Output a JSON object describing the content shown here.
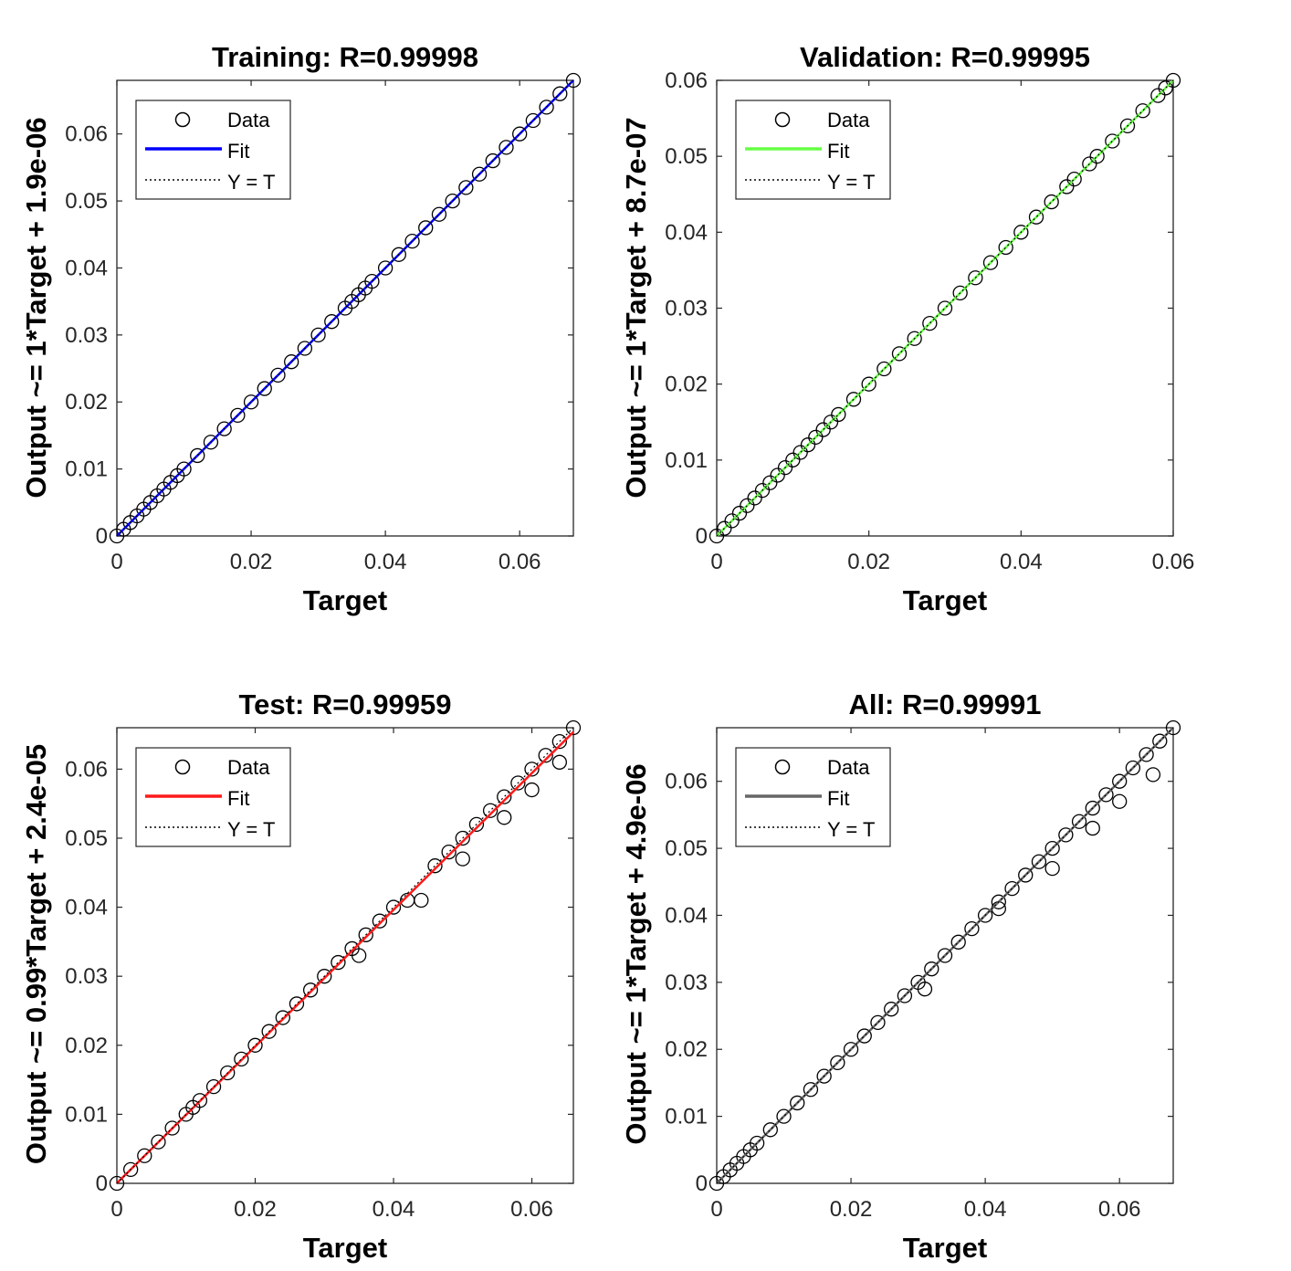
{
  "chart_data": [
    {
      "type": "scatter",
      "title": "Training: R=0.99998",
      "xlabel": "Target",
      "ylabel": "Output ~= 1*Target + 1.9e-06",
      "xlim": [
        0,
        0.068
      ],
      "ylim": [
        0,
        0.068
      ],
      "xticks": [
        "0",
        "0.02",
        "0.04",
        "0.06"
      ],
      "yticks": [
        "0",
        "0.01",
        "0.02",
        "0.03",
        "0.04",
        "0.05",
        "0.06"
      ],
      "xtick_values": [
        0,
        0.02,
        0.04,
        0.06
      ],
      "ytick_values": [
        0,
        0.01,
        0.02,
        0.03,
        0.04,
        0.05,
        0.06
      ],
      "fit": {
        "slope": 1,
        "intercept": 1.9e-06,
        "color": "#0000ff"
      },
      "legend": {
        "position": "top-left",
        "entries": [
          "Data",
          "Fit",
          "Y = T"
        ]
      },
      "grid": false,
      "data": [
        [
          0,
          0
        ],
        [
          0.001,
          0.001
        ],
        [
          0.002,
          0.002
        ],
        [
          0.003,
          0.003
        ],
        [
          0.004,
          0.004
        ],
        [
          0.005,
          0.005
        ],
        [
          0.006,
          0.006
        ],
        [
          0.007,
          0.007
        ],
        [
          0.008,
          0.008
        ],
        [
          0.009,
          0.009
        ],
        [
          0.01,
          0.01
        ],
        [
          0.012,
          0.012
        ],
        [
          0.014,
          0.014
        ],
        [
          0.016,
          0.016
        ],
        [
          0.018,
          0.018
        ],
        [
          0.02,
          0.02
        ],
        [
          0.022,
          0.022
        ],
        [
          0.024,
          0.024
        ],
        [
          0.026,
          0.026
        ],
        [
          0.028,
          0.028
        ],
        [
          0.03,
          0.03
        ],
        [
          0.032,
          0.032
        ],
        [
          0.034,
          0.034
        ],
        [
          0.035,
          0.035
        ],
        [
          0.036,
          0.036
        ],
        [
          0.037,
          0.037
        ],
        [
          0.038,
          0.038
        ],
        [
          0.04,
          0.04
        ],
        [
          0.042,
          0.042
        ],
        [
          0.044,
          0.044
        ],
        [
          0.046,
          0.046
        ],
        [
          0.048,
          0.048
        ],
        [
          0.05,
          0.05
        ],
        [
          0.052,
          0.052
        ],
        [
          0.054,
          0.054
        ],
        [
          0.056,
          0.056
        ],
        [
          0.058,
          0.058
        ],
        [
          0.06,
          0.06
        ],
        [
          0.062,
          0.062
        ],
        [
          0.064,
          0.064
        ],
        [
          0.066,
          0.066
        ],
        [
          0.068,
          0.068
        ]
      ]
    },
    {
      "type": "scatter",
      "title": "Validation: R=0.99995",
      "xlabel": "Target",
      "ylabel": "Output ~= 1*Target + 8.7e-07",
      "xlim": [
        0,
        0.06
      ],
      "ylim": [
        0,
        0.06
      ],
      "xticks": [
        "0",
        "0.02",
        "0.04",
        "0.06"
      ],
      "yticks": [
        "0",
        "0.01",
        "0.02",
        "0.03",
        "0.04",
        "0.05",
        "0.06"
      ],
      "xtick_values": [
        0,
        0.02,
        0.04,
        0.06
      ],
      "ytick_values": [
        0,
        0.01,
        0.02,
        0.03,
        0.04,
        0.05,
        0.06
      ],
      "fit": {
        "slope": 1,
        "intercept": 8.7e-07,
        "color": "#66ff44"
      },
      "legend": {
        "position": "top-left",
        "entries": [
          "Data",
          "Fit",
          "Y = T"
        ]
      },
      "grid": false,
      "data": [
        [
          0,
          0
        ],
        [
          0.001,
          0.001
        ],
        [
          0.002,
          0.002
        ],
        [
          0.003,
          0.003
        ],
        [
          0.004,
          0.004
        ],
        [
          0.005,
          0.005
        ],
        [
          0.006,
          0.006
        ],
        [
          0.007,
          0.007
        ],
        [
          0.008,
          0.008
        ],
        [
          0.009,
          0.009
        ],
        [
          0.01,
          0.01
        ],
        [
          0.011,
          0.011
        ],
        [
          0.012,
          0.012
        ],
        [
          0.013,
          0.013
        ],
        [
          0.014,
          0.014
        ],
        [
          0.015,
          0.015
        ],
        [
          0.016,
          0.016
        ],
        [
          0.018,
          0.018
        ],
        [
          0.02,
          0.02
        ],
        [
          0.022,
          0.022
        ],
        [
          0.024,
          0.024
        ],
        [
          0.026,
          0.026
        ],
        [
          0.028,
          0.028
        ],
        [
          0.03,
          0.03
        ],
        [
          0.032,
          0.032
        ],
        [
          0.034,
          0.034
        ],
        [
          0.036,
          0.036
        ],
        [
          0.038,
          0.038
        ],
        [
          0.04,
          0.04
        ],
        [
          0.042,
          0.042
        ],
        [
          0.044,
          0.044
        ],
        [
          0.046,
          0.046
        ],
        [
          0.047,
          0.047
        ],
        [
          0.049,
          0.049
        ],
        [
          0.05,
          0.05
        ],
        [
          0.052,
          0.052
        ],
        [
          0.054,
          0.054
        ],
        [
          0.056,
          0.056
        ],
        [
          0.058,
          0.058
        ],
        [
          0.059,
          0.059
        ],
        [
          0.06,
          0.06
        ]
      ]
    },
    {
      "type": "scatter",
      "title": "Test: R=0.99959",
      "xlabel": "Target",
      "ylabel": "Output ~= 0.99*Target + 2.4e-05",
      "xlim": [
        0,
        0.066
      ],
      "ylim": [
        0,
        0.066
      ],
      "xticks": [
        "0",
        "0.02",
        "0.04",
        "0.06"
      ],
      "yticks": [
        "0",
        "0.01",
        "0.02",
        "0.03",
        "0.04",
        "0.05",
        "0.06"
      ],
      "xtick_values": [
        0,
        0.02,
        0.04,
        0.06
      ],
      "ytick_values": [
        0,
        0.01,
        0.02,
        0.03,
        0.04,
        0.05,
        0.06
      ],
      "fit": {
        "slope": 0.99,
        "intercept": 2.4e-05,
        "color": "#ff1a1a"
      },
      "legend": {
        "position": "top-left",
        "entries": [
          "Data",
          "Fit",
          "Y = T"
        ]
      },
      "grid": false,
      "data": [
        [
          0,
          0
        ],
        [
          0.002,
          0.002
        ],
        [
          0.004,
          0.004
        ],
        [
          0.006,
          0.006
        ],
        [
          0.008,
          0.008
        ],
        [
          0.01,
          0.01
        ],
        [
          0.011,
          0.011
        ],
        [
          0.012,
          0.012
        ],
        [
          0.014,
          0.014
        ],
        [
          0.016,
          0.016
        ],
        [
          0.018,
          0.018
        ],
        [
          0.02,
          0.02
        ],
        [
          0.022,
          0.022
        ],
        [
          0.024,
          0.024
        ],
        [
          0.026,
          0.026
        ],
        [
          0.028,
          0.028
        ],
        [
          0.03,
          0.03
        ],
        [
          0.032,
          0.032
        ],
        [
          0.034,
          0.034
        ],
        [
          0.035,
          0.033
        ],
        [
          0.036,
          0.036
        ],
        [
          0.038,
          0.038
        ],
        [
          0.04,
          0.04
        ],
        [
          0.042,
          0.041
        ],
        [
          0.044,
          0.041
        ],
        [
          0.046,
          0.046
        ],
        [
          0.048,
          0.048
        ],
        [
          0.05,
          0.05
        ],
        [
          0.05,
          0.047
        ],
        [
          0.052,
          0.052
        ],
        [
          0.054,
          0.054
        ],
        [
          0.056,
          0.053
        ],
        [
          0.056,
          0.056
        ],
        [
          0.058,
          0.058
        ],
        [
          0.06,
          0.06
        ],
        [
          0.06,
          0.057
        ],
        [
          0.062,
          0.062
        ],
        [
          0.064,
          0.064
        ],
        [
          0.064,
          0.061
        ],
        [
          0.066,
          0.066
        ]
      ]
    },
    {
      "type": "scatter",
      "title": "All: R=0.99991",
      "xlabel": "Target",
      "ylabel": "Output ~= 1*Target + 4.9e-06",
      "xlim": [
        0,
        0.068
      ],
      "ylim": [
        0,
        0.068
      ],
      "xticks": [
        "0",
        "0.02",
        "0.04",
        "0.06"
      ],
      "yticks": [
        "0",
        "0.01",
        "0.02",
        "0.03",
        "0.04",
        "0.05",
        "0.06"
      ],
      "xtick_values": [
        0,
        0.02,
        0.04,
        0.06
      ],
      "ytick_values": [
        0,
        0.01,
        0.02,
        0.03,
        0.04,
        0.05,
        0.06
      ],
      "fit": {
        "slope": 1,
        "intercept": 4.9e-06,
        "color": "#666666"
      },
      "legend": {
        "position": "top-left",
        "entries": [
          "Data",
          "Fit",
          "Y = T"
        ]
      },
      "grid": false,
      "data": [
        [
          0,
          0
        ],
        [
          0.001,
          0.001
        ],
        [
          0.002,
          0.002
        ],
        [
          0.003,
          0.003
        ],
        [
          0.004,
          0.004
        ],
        [
          0.005,
          0.005
        ],
        [
          0.006,
          0.006
        ],
        [
          0.008,
          0.008
        ],
        [
          0.01,
          0.01
        ],
        [
          0.012,
          0.012
        ],
        [
          0.014,
          0.014
        ],
        [
          0.016,
          0.016
        ],
        [
          0.018,
          0.018
        ],
        [
          0.02,
          0.02
        ],
        [
          0.022,
          0.022
        ],
        [
          0.024,
          0.024
        ],
        [
          0.026,
          0.026
        ],
        [
          0.028,
          0.028
        ],
        [
          0.03,
          0.03
        ],
        [
          0.031,
          0.029
        ],
        [
          0.032,
          0.032
        ],
        [
          0.034,
          0.034
        ],
        [
          0.036,
          0.036
        ],
        [
          0.038,
          0.038
        ],
        [
          0.04,
          0.04
        ],
        [
          0.042,
          0.041
        ],
        [
          0.042,
          0.042
        ],
        [
          0.044,
          0.044
        ],
        [
          0.046,
          0.046
        ],
        [
          0.048,
          0.048
        ],
        [
          0.05,
          0.05
        ],
        [
          0.05,
          0.047
        ],
        [
          0.052,
          0.052
        ],
        [
          0.054,
          0.054
        ],
        [
          0.056,
          0.053
        ],
        [
          0.056,
          0.056
        ],
        [
          0.058,
          0.058
        ],
        [
          0.06,
          0.06
        ],
        [
          0.06,
          0.057
        ],
        [
          0.062,
          0.062
        ],
        [
          0.064,
          0.064
        ],
        [
          0.065,
          0.061
        ],
        [
          0.066,
          0.066
        ],
        [
          0.068,
          0.068
        ]
      ]
    }
  ]
}
